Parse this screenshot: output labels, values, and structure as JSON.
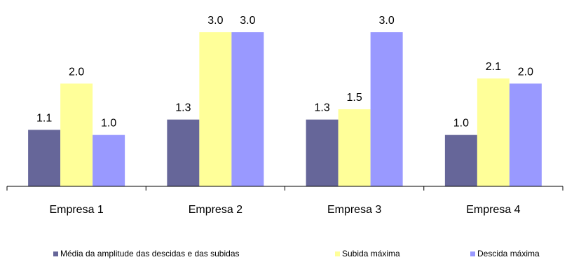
{
  "chart_data": {
    "type": "bar",
    "title": "",
    "xlabel": "",
    "ylabel": "",
    "categories": [
      "Empresa 1",
      "Empresa 2",
      "Empresa 3",
      "Empresa 4"
    ],
    "ylim": [
      0,
      3.0
    ],
    "grid": false,
    "legend_position": "bottom",
    "series": [
      {
        "name": "Média da amplitude das descidas e das subidas",
        "color": "#666699",
        "values": [
          1.1,
          1.3,
          1.3,
          1.0
        ],
        "labels": [
          "1.1",
          "1.3",
          "1.3",
          "1.0"
        ]
      },
      {
        "name": "Subida máxima",
        "color": "#FFFF99",
        "values": [
          2.0,
          3.0,
          1.5,
          2.1
        ],
        "labels": [
          "2.0",
          "3.0",
          "1.5",
          "2.1"
        ]
      },
      {
        "name": "Descida máxima",
        "color": "#9999FF",
        "values": [
          1.0,
          3.0,
          3.0,
          2.0
        ],
        "labels": [
          "1.0",
          "3.0",
          "3.0",
          "2.0"
        ]
      }
    ]
  }
}
